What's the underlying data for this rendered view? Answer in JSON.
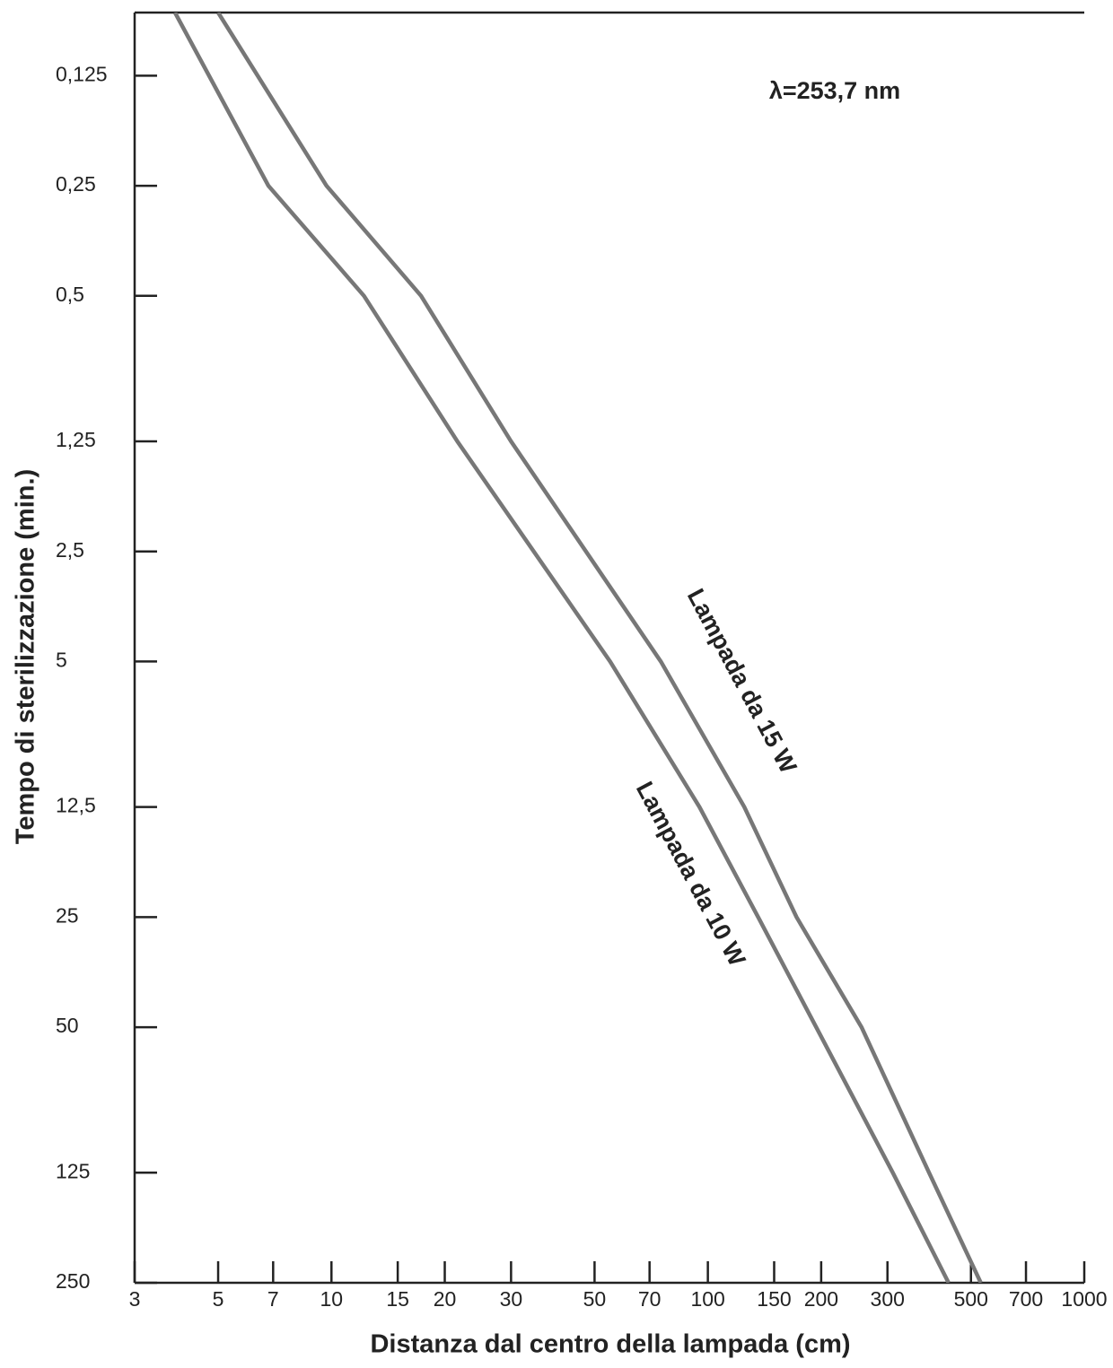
{
  "chart_data": {
    "type": "line",
    "xlabel": "Distanza dal centro della lampada (cm)",
    "ylabel": "Tempo di sterilizzazione (min.)",
    "annotations": [
      "λ=253,7 nm"
    ],
    "xlog": true,
    "ylog": true,
    "yinverted": true,
    "xlim": [
      3,
      1000
    ],
    "ylim": [
      0.084,
      250
    ],
    "xticks": [
      3,
      5,
      7,
      10,
      15,
      20,
      30,
      50,
      70,
      100,
      150,
      200,
      300,
      500,
      700,
      1000
    ],
    "yticks": [
      {
        "value": 0.125,
        "label": "0,125"
      },
      {
        "value": 0.25,
        "label": "0,25"
      },
      {
        "value": 0.5,
        "label": "0,5"
      },
      {
        "value": 1.25,
        "label": "1,25"
      },
      {
        "value": 2.5,
        "label": "2,5"
      },
      5,
      {
        "value": 12.5,
        "label": "12,5"
      },
      25,
      50,
      125,
      250
    ],
    "series": [
      {
        "name": "Lampada da 15 W",
        "color": "#777777",
        "x": [
          5.0,
          9.7,
          17.3,
          30,
          75,
          125,
          172,
          256,
          387,
          531
        ],
        "values": [
          0.084,
          0.25,
          0.5,
          1.25,
          5,
          12.5,
          25,
          50,
          125,
          250
        ]
      },
      {
        "name": "Lampada da 10 W",
        "color": "#777777",
        "x": [
          3.84,
          6.8,
          12.2,
          21.6,
          55,
          95,
          136,
          194,
          310,
          436
        ],
        "values": [
          0.084,
          0.25,
          0.5,
          1.25,
          5,
          12.5,
          25,
          50,
          125,
          250
        ]
      }
    ]
  }
}
